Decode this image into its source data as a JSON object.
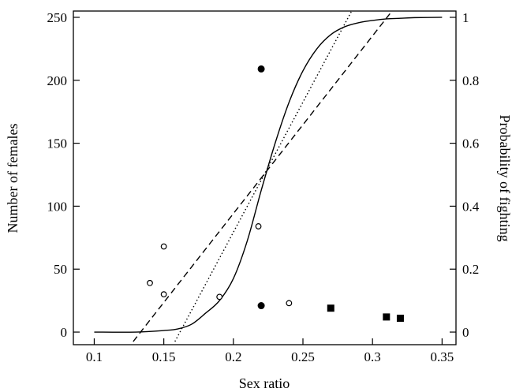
{
  "chart_data": {
    "type": "scatter",
    "title": "",
    "xlabel": "Sex ratio",
    "ylabel": "Number of females",
    "y2label": "Probability of fighting",
    "xlim": [
      0.085,
      0.36
    ],
    "ylim": [
      -10,
      255
    ],
    "y2lim": [
      -0.04,
      1.02
    ],
    "xticks": [
      0.1,
      0.15,
      0.2,
      0.25,
      0.3,
      0.35
    ],
    "xtick_labels": [
      "0.1",
      "0.15",
      "0.2",
      "0.25",
      "0.3",
      "0.35"
    ],
    "yticks": [
      0,
      50,
      100,
      150,
      200,
      250
    ],
    "ytick_labels": [
      "0",
      "50",
      "100",
      "150",
      "200",
      "250"
    ],
    "y2ticks": [
      0,
      0.2,
      0.4,
      0.6,
      0.8,
      1
    ],
    "y2tick_labels": [
      "0",
      "0.2",
      "0.4",
      "0.6",
      "0.8",
      "1"
    ],
    "grid": false,
    "legend": "none",
    "series": [
      {
        "marker": "open-circle",
        "axis": "left",
        "x": [
          0.14,
          0.15,
          0.15,
          0.19,
          0.218,
          0.24
        ],
        "y": [
          39,
          68,
          30,
          28,
          84,
          23
        ]
      },
      {
        "marker": "filled-circle",
        "axis": "left",
        "x": [
          0.22,
          0.22
        ],
        "y": [
          209,
          21
        ]
      },
      {
        "marker": "filled-square",
        "axis": "left",
        "x": [
          0.27,
          0.31,
          0.32
        ],
        "y": [
          19,
          12,
          11
        ]
      },
      {
        "line": "solid",
        "axis": "right",
        "x": [
          0.1,
          0.13,
          0.15,
          0.16,
          0.17,
          0.18,
          0.19,
          0.2,
          0.21,
          0.22,
          0.23,
          0.24,
          0.25,
          0.26,
          0.27,
          0.28,
          0.29,
          0.3,
          0.31,
          0.32,
          0.33,
          0.35
        ],
        "y": [
          0.0,
          0.0,
          0.005,
          0.01,
          0.025,
          0.06,
          0.1,
          0.17,
          0.29,
          0.45,
          0.6,
          0.73,
          0.83,
          0.9,
          0.945,
          0.97,
          0.983,
          0.99,
          0.995,
          0.997,
          0.999,
          1.0
        ]
      },
      {
        "line": "dotted",
        "axis": "right",
        "x": [
          0.158,
          0.285
        ],
        "y": [
          -0.03,
          1.02
        ]
      },
      {
        "line": "dashed",
        "axis": "right",
        "x": [
          0.128,
          0.314
        ],
        "y": [
          -0.03,
          1.02
        ]
      }
    ]
  }
}
